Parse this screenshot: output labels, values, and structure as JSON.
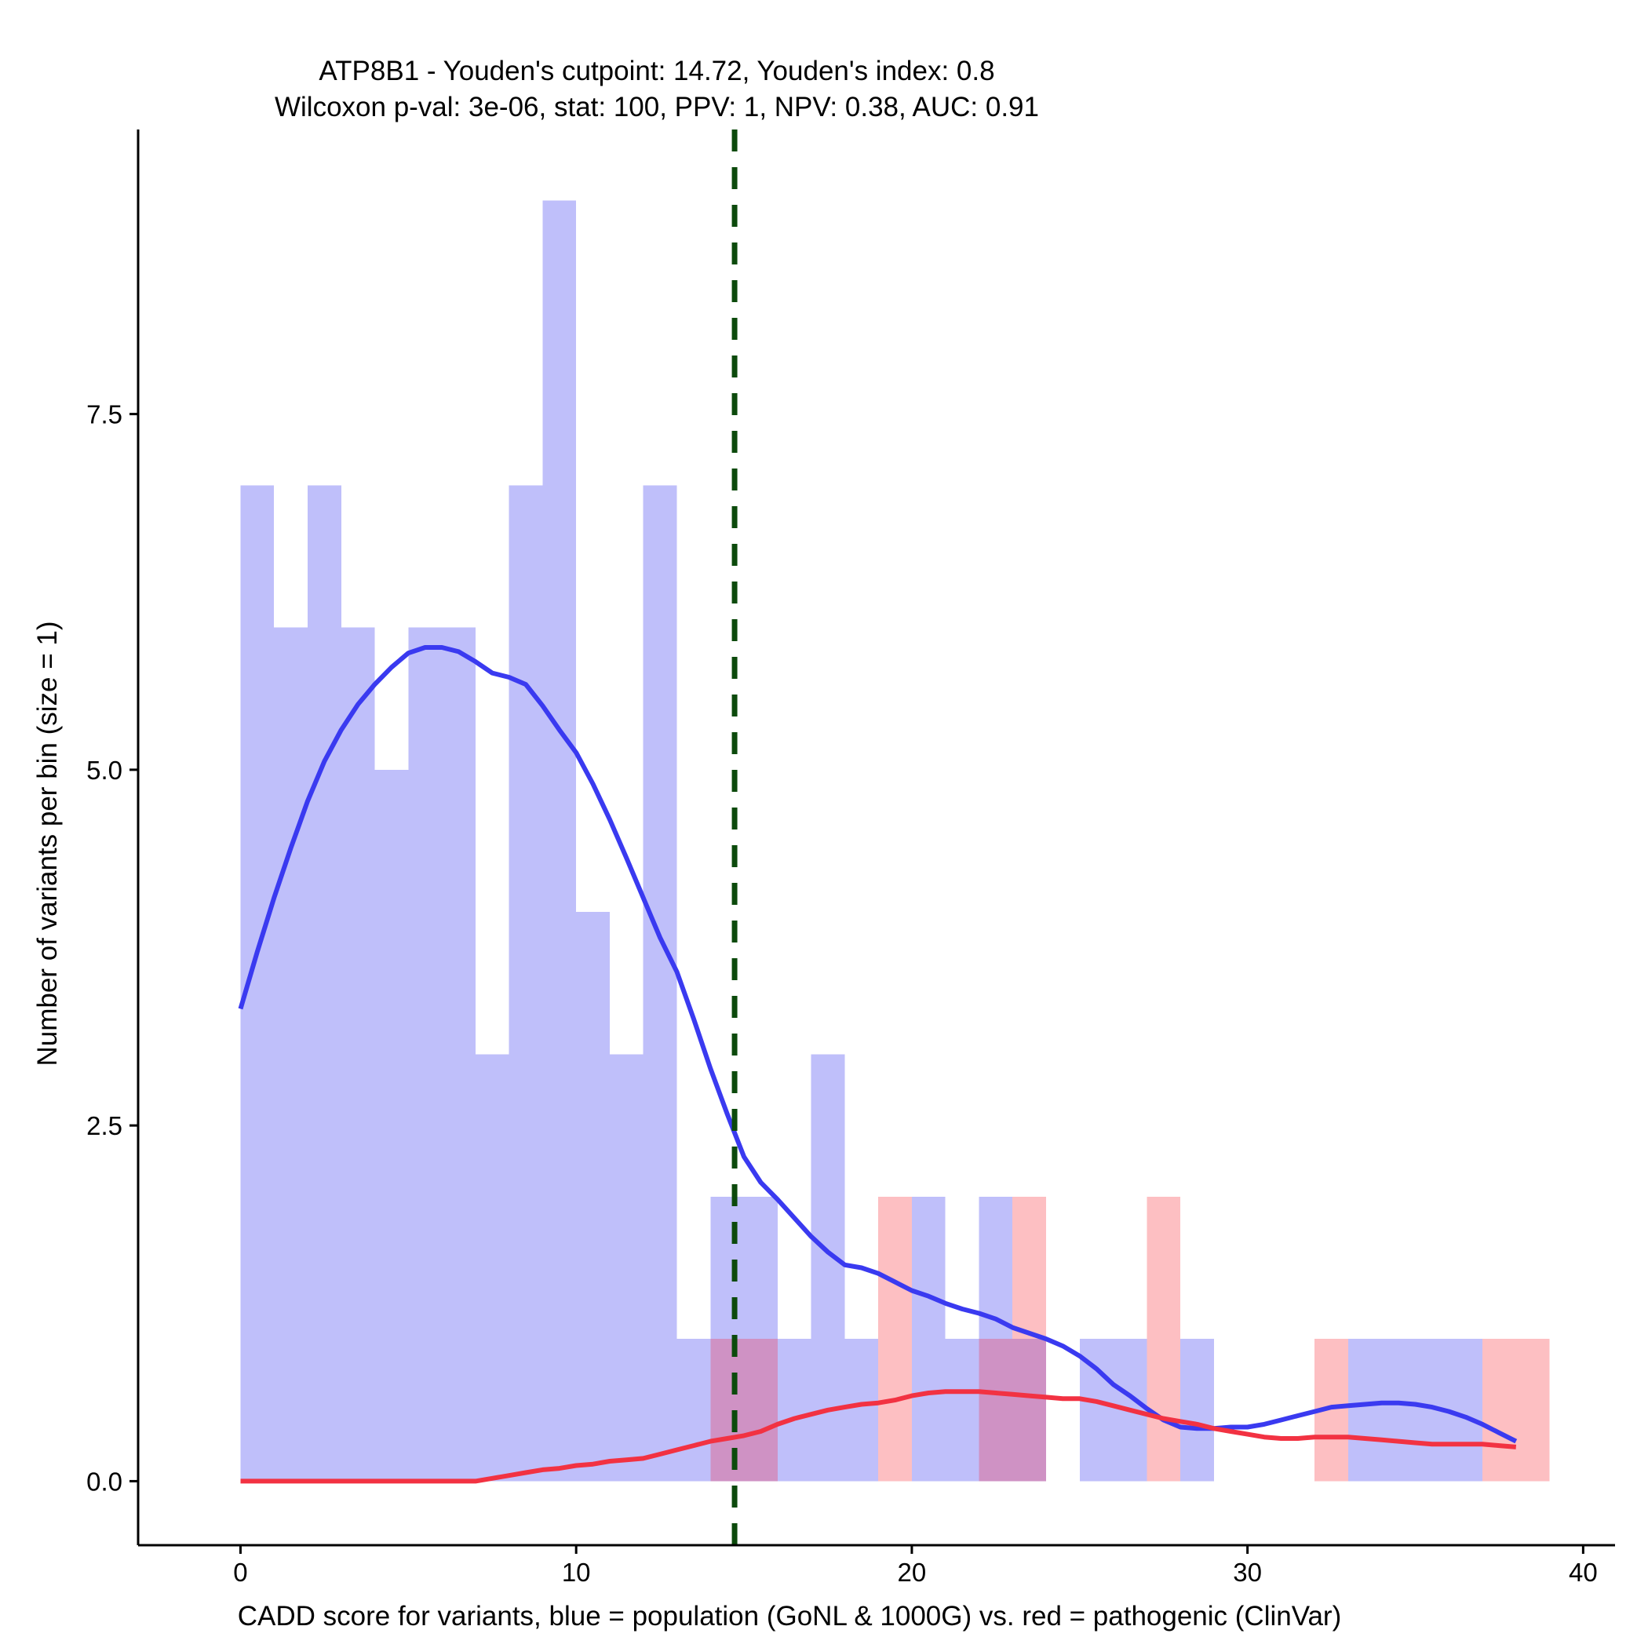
{
  "chart_data": {
    "type": "histogram",
    "title_lines": [
      "ATP8B1 - Youden's cutpoint: 14.72, Youden's index: 0.8",
      "Wilcoxon p-val: 3e-06, stat: 100, PPV: 1, NPV: 0.38, AUC: 0.91"
    ],
    "xlabel": "CADD score for variants, blue = population (GoNL & 1000G) vs. red = pathogenic (ClinVar)",
    "ylabel": "Number of variants per bin (size = 1)",
    "xlim": [
      -3.05,
      40.95
    ],
    "ylim": [
      -0.45,
      9.5
    ],
    "x_ticks": [
      0,
      10,
      20,
      30,
      40
    ],
    "x_tick_labels": [
      "0",
      "10",
      "20",
      "30",
      "40"
    ],
    "y_ticks": [
      0,
      2.5,
      5,
      7.5
    ],
    "y_tick_labels": [
      "0.0",
      "2.5",
      "5.0",
      "7.5"
    ],
    "bin_width": 1,
    "cutpoint": 14.72,
    "colors": {
      "population_bar": "#bfbffa",
      "pathogenic_bar": "#fdbfc2",
      "overlap_bar": "#cf92c4",
      "population_line": "#3a3af0",
      "pathogenic_line": "#f23242",
      "cutpoint_line": "#0c4a0c"
    },
    "series": [
      {
        "name": "population (GoNL & 1000G)",
        "bins": [
          {
            "x": 0,
            "count": 7
          },
          {
            "x": 1,
            "count": 6
          },
          {
            "x": 2,
            "count": 7
          },
          {
            "x": 3,
            "count": 6
          },
          {
            "x": 4,
            "count": 5
          },
          {
            "x": 5,
            "count": 6
          },
          {
            "x": 6,
            "count": 6
          },
          {
            "x": 7,
            "count": 3
          },
          {
            "x": 8,
            "count": 7
          },
          {
            "x": 9,
            "count": 9
          },
          {
            "x": 10,
            "count": 4
          },
          {
            "x": 11,
            "count": 3
          },
          {
            "x": 12,
            "count": 7
          },
          {
            "x": 13,
            "count": 1
          },
          {
            "x": 14,
            "count": 2
          },
          {
            "x": 15,
            "count": 2
          },
          {
            "x": 16,
            "count": 1
          },
          {
            "x": 17,
            "count": 3
          },
          {
            "x": 18,
            "count": 1
          },
          {
            "x": 20,
            "count": 2
          },
          {
            "x": 21,
            "count": 1
          },
          {
            "x": 22,
            "count": 2
          },
          {
            "x": 23,
            "count": 1
          },
          {
            "x": 25,
            "count": 1
          },
          {
            "x": 26,
            "count": 1
          },
          {
            "x": 28,
            "count": 1
          },
          {
            "x": 33,
            "count": 1
          },
          {
            "x": 34,
            "count": 1
          },
          {
            "x": 35,
            "count": 1
          },
          {
            "x": 36,
            "count": 1
          }
        ],
        "density_curve": [
          [
            0,
            3.32
          ],
          [
            0.5,
            3.72
          ],
          [
            1,
            4.1
          ],
          [
            1.5,
            4.45
          ],
          [
            2,
            4.78
          ],
          [
            2.5,
            5.06
          ],
          [
            3,
            5.28
          ],
          [
            3.5,
            5.46
          ],
          [
            4,
            5.6
          ],
          [
            4.5,
            5.72
          ],
          [
            5,
            5.82
          ],
          [
            5.5,
            5.86
          ],
          [
            6,
            5.86
          ],
          [
            6.5,
            5.83
          ],
          [
            7,
            5.76
          ],
          [
            7.5,
            5.68
          ],
          [
            8,
            5.65
          ],
          [
            8.5,
            5.6
          ],
          [
            9,
            5.45
          ],
          [
            9.5,
            5.28
          ],
          [
            10,
            5.12
          ],
          [
            10.5,
            4.9
          ],
          [
            11,
            4.65
          ],
          [
            11.5,
            4.38
          ],
          [
            12,
            4.1
          ],
          [
            12.5,
            3.82
          ],
          [
            13,
            3.58
          ],
          [
            13.5,
            3.25
          ],
          [
            14,
            2.9
          ],
          [
            14.5,
            2.58
          ],
          [
            15,
            2.28
          ],
          [
            15.5,
            2.1
          ],
          [
            16,
            1.98
          ],
          [
            16.5,
            1.85
          ],
          [
            17,
            1.72
          ],
          [
            17.5,
            1.61
          ],
          [
            18,
            1.52
          ],
          [
            18.5,
            1.5
          ],
          [
            19,
            1.46
          ],
          [
            19.5,
            1.4
          ],
          [
            20,
            1.34
          ],
          [
            20.5,
            1.3
          ],
          [
            21,
            1.25
          ],
          [
            21.5,
            1.21
          ],
          [
            22,
            1.18
          ],
          [
            22.5,
            1.14
          ],
          [
            23,
            1.08
          ],
          [
            23.5,
            1.04
          ],
          [
            24,
            1.0
          ],
          [
            24.5,
            0.95
          ],
          [
            25,
            0.88
          ],
          [
            25.5,
            0.79
          ],
          [
            26,
            0.68
          ],
          [
            26.5,
            0.6
          ],
          [
            27,
            0.51
          ],
          [
            27.5,
            0.43
          ],
          [
            28,
            0.38
          ],
          [
            28.5,
            0.37
          ],
          [
            29,
            0.37
          ],
          [
            29.5,
            0.38
          ],
          [
            30,
            0.38
          ],
          [
            30.5,
            0.4
          ],
          [
            31,
            0.43
          ],
          [
            31.5,
            0.46
          ],
          [
            32,
            0.49
          ],
          [
            32.5,
            0.52
          ],
          [
            33,
            0.53
          ],
          [
            33.5,
            0.54
          ],
          [
            34,
            0.55
          ],
          [
            34.5,
            0.55
          ],
          [
            35,
            0.54
          ],
          [
            35.5,
            0.52
          ],
          [
            36,
            0.49
          ],
          [
            36.5,
            0.45
          ],
          [
            37,
            0.4
          ],
          [
            37.5,
            0.34
          ],
          [
            38,
            0.28
          ]
        ]
      },
      {
        "name": "pathogenic (ClinVar)",
        "bins": [
          {
            "x": 14,
            "count": 1
          },
          {
            "x": 15,
            "count": 1
          },
          {
            "x": 19,
            "count": 2
          },
          {
            "x": 22,
            "count": 1
          },
          {
            "x": 23,
            "count": 2
          },
          {
            "x": 27,
            "count": 2
          },
          {
            "x": 32,
            "count": 1
          },
          {
            "x": 37,
            "count": 1
          },
          {
            "x": 38,
            "count": 1
          }
        ],
        "density_curve": [
          [
            0,
            0.0
          ],
          [
            2,
            0.0
          ],
          [
            4,
            0.0
          ],
          [
            6,
            0.0
          ],
          [
            7,
            0.0
          ],
          [
            7.5,
            0.02
          ],
          [
            8,
            0.04
          ],
          [
            8.5,
            0.06
          ],
          [
            9,
            0.08
          ],
          [
            9.5,
            0.09
          ],
          [
            10,
            0.11
          ],
          [
            10.5,
            0.12
          ],
          [
            11,
            0.14
          ],
          [
            11.5,
            0.15
          ],
          [
            12,
            0.16
          ],
          [
            12.5,
            0.19
          ],
          [
            13,
            0.22
          ],
          [
            13.5,
            0.25
          ],
          [
            14,
            0.28
          ],
          [
            14.5,
            0.3
          ],
          [
            15,
            0.32
          ],
          [
            15.5,
            0.35
          ],
          [
            16,
            0.4
          ],
          [
            16.5,
            0.44
          ],
          [
            17,
            0.47
          ],
          [
            17.5,
            0.5
          ],
          [
            18,
            0.52
          ],
          [
            18.5,
            0.54
          ],
          [
            19,
            0.55
          ],
          [
            19.5,
            0.57
          ],
          [
            20,
            0.6
          ],
          [
            20.5,
            0.62
          ],
          [
            21,
            0.63
          ],
          [
            21.5,
            0.63
          ],
          [
            22,
            0.63
          ],
          [
            22.5,
            0.62
          ],
          [
            23,
            0.61
          ],
          [
            23.5,
            0.6
          ],
          [
            24,
            0.59
          ],
          [
            24.5,
            0.58
          ],
          [
            25,
            0.58
          ],
          [
            25.5,
            0.56
          ],
          [
            26,
            0.53
          ],
          [
            26.5,
            0.5
          ],
          [
            27,
            0.47
          ],
          [
            27.5,
            0.44
          ],
          [
            28,
            0.42
          ],
          [
            28.5,
            0.4
          ],
          [
            29,
            0.37
          ],
          [
            29.5,
            0.35
          ],
          [
            30,
            0.33
          ],
          [
            30.5,
            0.31
          ],
          [
            31,
            0.3
          ],
          [
            31.5,
            0.3
          ],
          [
            32,
            0.31
          ],
          [
            32.5,
            0.31
          ],
          [
            33,
            0.31
          ],
          [
            33.5,
            0.3
          ],
          [
            34,
            0.29
          ],
          [
            34.5,
            0.28
          ],
          [
            35,
            0.27
          ],
          [
            35.5,
            0.26
          ],
          [
            36,
            0.26
          ],
          [
            36.5,
            0.26
          ],
          [
            37,
            0.26
          ],
          [
            37.5,
            0.25
          ],
          [
            38,
            0.24
          ]
        ]
      }
    ]
  }
}
